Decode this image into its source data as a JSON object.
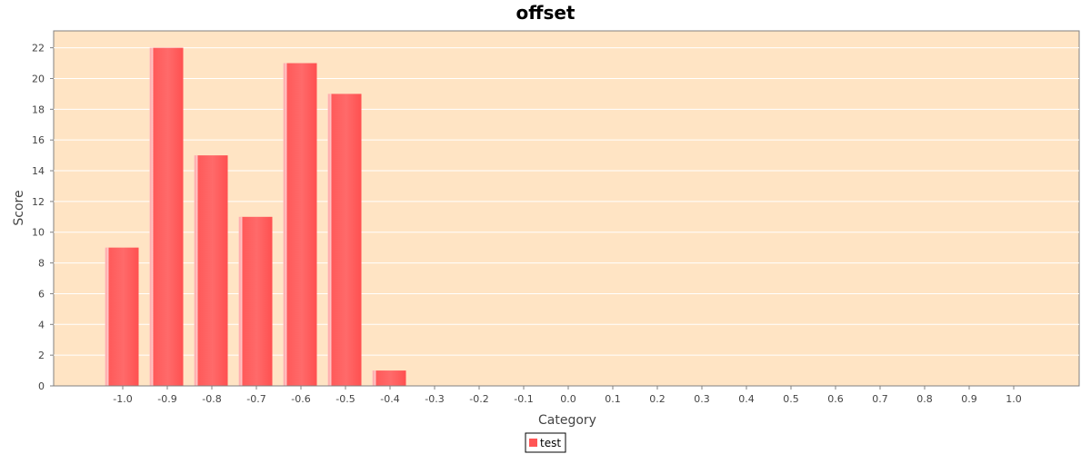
{
  "chart_data": {
    "type": "bar",
    "title": "offset",
    "xlabel": "Category",
    "ylabel": "Score",
    "categories": [
      "-1.0",
      "-0.9",
      "-0.8",
      "-0.7",
      "-0.6",
      "-0.5",
      "-0.4",
      "-0.3",
      "-0.2",
      "-0.1",
      "0.0",
      "0.1",
      "0.2",
      "0.3",
      "0.4",
      "0.5",
      "0.6",
      "0.7",
      "0.8",
      "0.9",
      "1.0"
    ],
    "series": [
      {
        "name": "test",
        "color": "#ff5555",
        "values": [
          9,
          22,
          15,
          11,
          21,
          19,
          1,
          0,
          0,
          0,
          0,
          0,
          0,
          0,
          0,
          0,
          0,
          0,
          0,
          0,
          0
        ]
      }
    ],
    "ylim": [
      0,
      23.1
    ],
    "yticks": [
      0,
      2,
      4,
      6,
      8,
      10,
      12,
      14,
      16,
      18,
      20,
      22
    ],
    "grid": true,
    "legend": "bottom",
    "colors": {
      "plot_background": "#ffe4c4",
      "grid": "#ffffff",
      "bar": "#ff5555"
    }
  }
}
